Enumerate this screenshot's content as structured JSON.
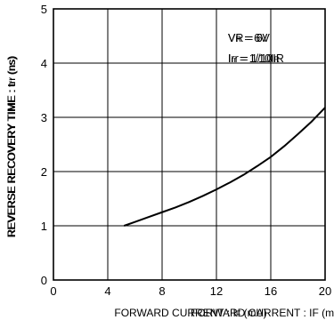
{
  "chart_data": {
    "type": "line",
    "title": "",
    "xlabel": "FORWARD CURRENT : IF (mA)",
    "ylabel": "REVERSE RECOVERY TIME : trr (ns)",
    "xlim": [
      0,
      20
    ],
    "ylim": [
      0,
      5
    ],
    "x_ticks": [
      "0",
      "4",
      "8",
      "12",
      "16",
      "20"
    ],
    "y_ticks": [
      "0",
      "1",
      "2",
      "3",
      "4",
      "5"
    ],
    "grid": true,
    "annotations": [
      "VR = 6V",
      "Irr = 1/10IR"
    ],
    "series": [
      {
        "x": [
          5.2,
          6,
          7,
          8,
          9,
          10,
          11,
          12,
          13,
          14,
          15,
          16,
          17,
          18,
          19,
          20
        ],
        "y": [
          1.0,
          1.07,
          1.16,
          1.25,
          1.34,
          1.44,
          1.55,
          1.67,
          1.8,
          1.94,
          2.1,
          2.27,
          2.47,
          2.69,
          2.92,
          3.18
        ]
      }
    ]
  }
}
